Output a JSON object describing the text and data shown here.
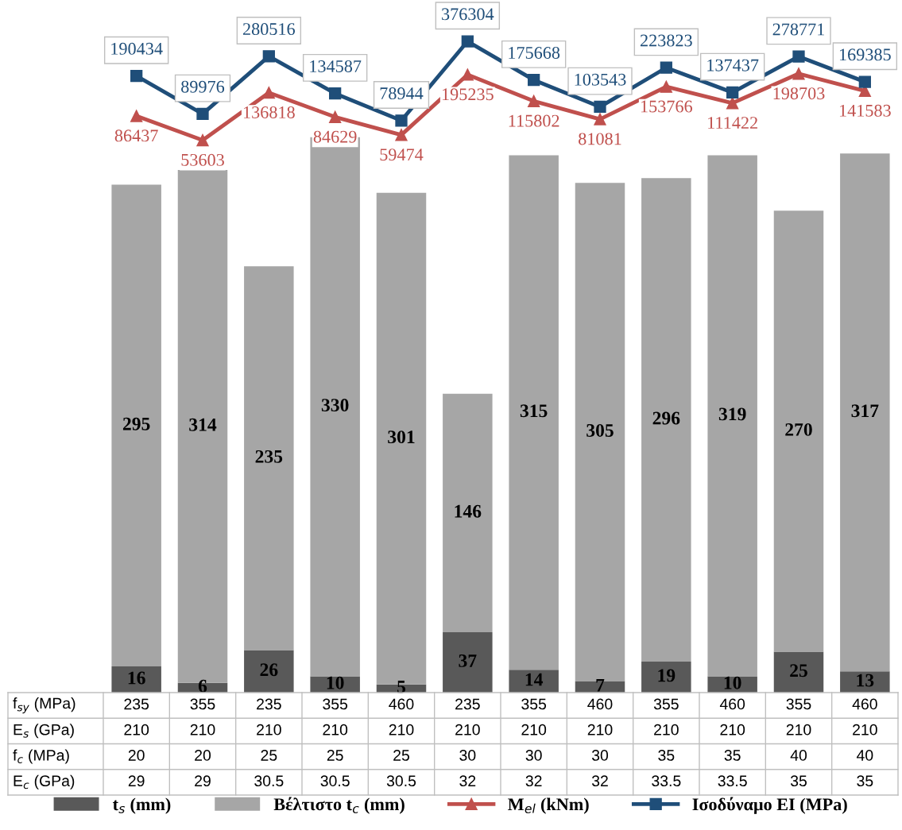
{
  "chart_data": {
    "type": "bar",
    "stacked": true,
    "data_labels": true,
    "legend": "bottom",
    "tick_labels": false,
    "log": "y2",
    "categories": [
      "235\n210\n20\n29",
      "355\n210\n20\n29",
      "235\n210\n25\n30.5",
      "355\n210\n25\n30.5",
      "460\n210\n25\n30.5",
      "235\n210\n30\n32",
      "355\n210\n30\n32",
      "460\n210\n30\n32",
      "355\n210\n35\n33.5",
      "460\n210\n35\n33.5",
      "355\n210\n40\n35",
      "460\n210\n40\n35"
    ],
    "annotations": [
      "f$_{sy}$ (MPa)",
      "E$_{s}$ (GPa)",
      "f$_{c}$ (MPa)",
      "E$_{c}$ (GPa)"
    ],
    "ylim": [
      0,
      424
    ],
    "y2lim": [
      1,
      850000
    ],
    "series": [
      {
        "name": "t$_{s}$ (mm)",
        "color": "#595959",
        "values": [
          16,
          6,
          26,
          10,
          5,
          37,
          14,
          7,
          19,
          10,
          25,
          13
        ]
      },
      {
        "name": "Βέλτιστο t$_{c}$ (mm)",
        "color": "#a6a6a6",
        "values": [
          295,
          314,
          235,
          330,
          301,
          146,
          315,
          305,
          296,
          319,
          270,
          317
        ]
      },
      {
        "name": "M$_{el}$ (kNm)",
        "type": "line",
        "axis": "y2",
        "marker": "triangle",
        "color": "#c0504d",
        "values": [
          86437,
          53603,
          136818,
          84629,
          59474,
          195235,
          115802,
          81081,
          153766,
          111422,
          198703,
          141583
        ]
      },
      {
        "name": "Ισοδύναμο EI (MPa)",
        "type": "line",
        "axis": "y2",
        "marker": "square",
        "color": "#1f4e79",
        "values": [
          190434,
          89976,
          280516,
          134587,
          78944,
          376304,
          175668,
          103543,
          223823,
          137437,
          278771,
          169385
        ]
      }
    ]
  }
}
